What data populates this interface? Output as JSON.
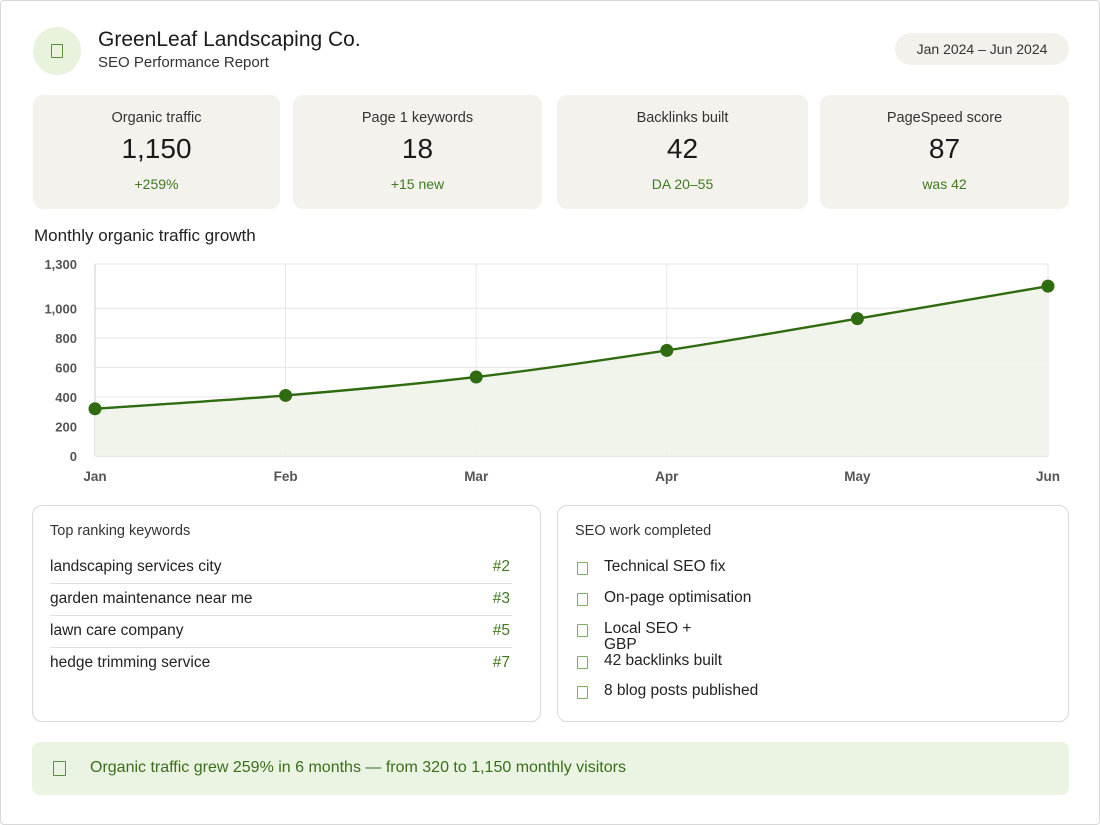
{
  "header": {
    "company": "GreenLeaf Landscaping Co.",
    "subtitle": "SEO Performance Report",
    "date_range": "Jan 2024 – Jun 2024",
    "logo_icon": "leaf-icon"
  },
  "kpis": [
    {
      "label": "Organic traffic",
      "value": "1,150",
      "sub": "+259%"
    },
    {
      "label": "Page 1 keywords",
      "value": "18",
      "sub": "+15 new"
    },
    {
      "label": "Backlinks built",
      "value": "42",
      "sub": "DA 20–55"
    },
    {
      "label": "PageSpeed score",
      "value": "87",
      "sub": "was 42"
    }
  ],
  "chart_title": "Monthly organic traffic growth",
  "chart_data": {
    "type": "area",
    "categories": [
      "Jan",
      "Feb",
      "Mar",
      "Apr",
      "May",
      "Jun"
    ],
    "values": [
      320,
      410,
      535,
      715,
      930,
      1150
    ],
    "y_ticks": [
      0,
      200,
      400,
      600,
      800,
      1000,
      1300
    ],
    "y_tick_labels": [
      "0",
      "200",
      "400",
      "600",
      "800",
      "1,000",
      "1,300"
    ],
    "ylim": [
      0,
      1300
    ],
    "grid": true,
    "line_color": "#2f6b10",
    "fill_color": "#eef3e8"
  },
  "keywords": {
    "title": "Top ranking keywords",
    "items": [
      {
        "keyword": "landscaping services city",
        "rank": "#2"
      },
      {
        "keyword": "garden maintenance near me",
        "rank": "#3"
      },
      {
        "keyword": "lawn care company",
        "rank": "#5"
      },
      {
        "keyword": "hedge trimming service",
        "rank": "#7"
      }
    ]
  },
  "work": {
    "title": "SEO work completed",
    "check_icon": "checkbox-icon",
    "items": [
      "Technical SEO fix",
      "On-page optimisation",
      "Local SEO + GBP",
      "42 backlinks built",
      "8 blog posts published"
    ]
  },
  "banner": {
    "text": "Organic traffic grew 259% in 6 months — from 320 to 1,150 monthly visitors",
    "icon": "trend-icon"
  },
  "colors": {
    "accent_green": "#3f7a1f",
    "card_bg": "#f4f2ed",
    "banner_bg": "#ebf3e2"
  }
}
